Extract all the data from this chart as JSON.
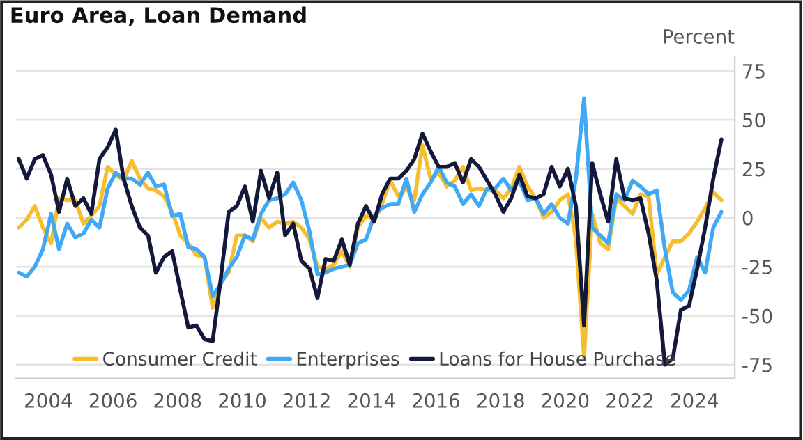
{
  "chart_data": {
    "type": "line",
    "title": "Euro Area, Loan Demand",
    "ylabel": "Percent",
    "x": [
      "2003-02",
      "2003-05",
      "2003-08",
      "2003-11",
      "2004-02",
      "2004-05",
      "2004-08",
      "2004-11",
      "2005-02",
      "2005-05",
      "2005-08",
      "2005-11",
      "2006-02",
      "2006-05",
      "2006-08",
      "2006-11",
      "2007-02",
      "2007-05",
      "2007-08",
      "2007-11",
      "2008-02",
      "2008-05",
      "2008-08",
      "2008-11",
      "2009-02",
      "2009-05",
      "2009-08",
      "2009-11",
      "2010-02",
      "2010-05",
      "2010-08",
      "2010-11",
      "2011-02",
      "2011-05",
      "2011-08",
      "2011-11",
      "2012-02",
      "2012-05",
      "2012-08",
      "2012-11",
      "2013-02",
      "2013-05",
      "2013-08",
      "2013-11",
      "2014-02",
      "2014-05",
      "2014-08",
      "2014-11",
      "2015-02",
      "2015-05",
      "2015-08",
      "2015-11",
      "2016-02",
      "2016-05",
      "2016-08",
      "2016-11",
      "2017-02",
      "2017-05",
      "2017-08",
      "2017-11",
      "2018-02",
      "2018-05",
      "2018-08",
      "2018-11",
      "2019-02",
      "2019-05",
      "2019-08",
      "2019-11",
      "2020-02",
      "2020-05",
      "2020-08",
      "2020-11",
      "2021-02",
      "2021-05",
      "2021-08",
      "2021-11",
      "2022-02",
      "2022-05",
      "2022-08",
      "2022-11",
      "2023-02",
      "2023-05",
      "2023-08",
      "2023-11",
      "2024-02",
      "2024-05",
      "2024-08",
      "2024-11"
    ],
    "series": [
      {
        "name": "Consumer Credit",
        "color": "#f6be2c",
        "values": [
          -5,
          -1,
          6,
          -5,
          -13,
          10,
          9,
          9,
          -3,
          1,
          6,
          26,
          22,
          19,
          29,
          20,
          15,
          14,
          11,
          3,
          -9,
          -13,
          -19,
          -20,
          -46,
          -33,
          -28,
          -9,
          -9,
          -12,
          0,
          -5,
          -2,
          -3,
          -2,
          -5,
          -11,
          -25,
          -26,
          -24,
          -17,
          -25,
          -5,
          1,
          -1,
          7,
          19,
          11,
          15,
          9,
          37,
          20,
          23,
          16,
          19,
          26,
          14,
          15,
          14,
          14,
          10,
          15,
          26,
          16,
          10,
          0,
          3,
          9,
          12,
          -11,
          -71,
          2,
          -13,
          -16,
          10,
          6,
          2,
          12,
          11,
          -29,
          -20,
          -12,
          -12,
          -8,
          -2,
          5,
          13,
          9
        ]
      },
      {
        "name": "Enterprises",
        "color": "#3fa9f5",
        "values": [
          -28,
          -30,
          -25,
          -16,
          2,
          -16,
          -3,
          -10,
          -8,
          -1,
          -5,
          15,
          23,
          20,
          20,
          17,
          23,
          16,
          17,
          1,
          2,
          -15,
          -16,
          -20,
          -40,
          -34,
          -26,
          -20,
          -9,
          -11,
          2,
          9,
          10,
          12,
          18,
          9,
          -7,
          -29,
          -28,
          -26,
          -25,
          -24,
          -13,
          -11,
          1,
          5,
          7,
          7,
          20,
          3,
          12,
          18,
          26,
          18,
          16,
          7,
          12,
          6,
          15,
          15,
          20,
          14,
          19,
          9,
          10,
          2,
          7,
          0,
          -3,
          20,
          61,
          -5,
          -9,
          -13,
          12,
          9,
          19,
          16,
          12,
          14,
          -16,
          -38,
          -42,
          -37,
          -20,
          -28,
          -5,
          3
        ]
      },
      {
        "name": "Loans for House Purchase",
        "color": "#14183a",
        "values": [
          30,
          20,
          30,
          32,
          22,
          3,
          20,
          6,
          10,
          2,
          30,
          36,
          45,
          20,
          6,
          -5,
          -9,
          -28,
          -20,
          -17,
          -37,
          -56,
          -55,
          -62,
          -63,
          -32,
          3,
          6,
          16,
          -2,
          24,
          10,
          23,
          -9,
          -3,
          -22,
          -26,
          -41,
          -21,
          -22,
          -11,
          -24,
          -3,
          6,
          -2,
          12,
          20,
          20,
          24,
          30,
          43,
          34,
          26,
          26,
          28,
          18,
          30,
          26,
          19,
          12,
          3,
          10,
          22,
          11,
          10,
          12,
          26,
          16,
          25,
          6,
          -55,
          28,
          12,
          -2,
          30,
          10,
          9,
          10,
          -8,
          -32,
          -75,
          -72,
          -47,
          -45,
          -26,
          -5,
          20,
          40
        ]
      }
    ],
    "xlim": [
      "2003-01",
      "2025-04"
    ],
    "xticks": [
      {
        "value": "2004",
        "label": "2004"
      },
      {
        "value": "2006",
        "label": "2006"
      },
      {
        "value": "2008",
        "label": "2008"
      },
      {
        "value": "2010",
        "label": "2010"
      },
      {
        "value": "2012",
        "label": "2012"
      },
      {
        "value": "2014",
        "label": "2014"
      },
      {
        "value": "2016",
        "label": "2016"
      },
      {
        "value": "2018",
        "label": "2018"
      },
      {
        "value": "2020",
        "label": "2020"
      },
      {
        "value": "2022",
        "label": "2022"
      },
      {
        "value": "2024",
        "label": "2024"
      }
    ],
    "ylim": [
      -82,
      82
    ],
    "yticks": [
      -75,
      -50,
      -25,
      0,
      25,
      50,
      75
    ],
    "grid": "y",
    "legend": "bottom",
    "marker": "none",
    "line_style": "solid"
  }
}
